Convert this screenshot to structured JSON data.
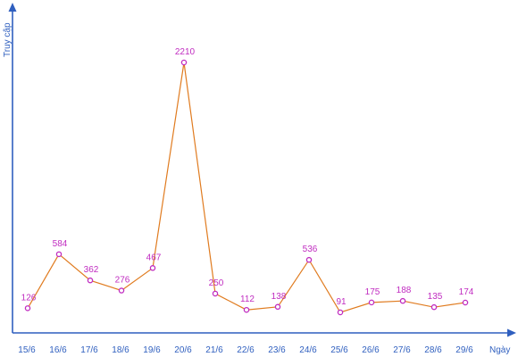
{
  "chart_data": {
    "type": "line",
    "xlabel": "Ngày",
    "ylabel": "Truy cập",
    "categories": [
      "15/6",
      "16/6",
      "17/6",
      "18/6",
      "19/6",
      "20/6",
      "21/6",
      "22/6",
      "23/6",
      "24/6",
      "25/6",
      "26/6",
      "27/6",
      "28/6",
      "29/6"
    ],
    "series": [
      {
        "values": [
          126,
          584,
          362,
          276,
          467,
          2210,
          250,
          112,
          138,
          536,
          91,
          175,
          188,
          135,
          174
        ]
      }
    ],
    "ylim": [
      0,
      2500
    ],
    "grid": false,
    "legend": "none",
    "colors": {
      "line": "#e07b1f",
      "marker": "#c02cc0",
      "axis": "#2f5fbf"
    }
  }
}
